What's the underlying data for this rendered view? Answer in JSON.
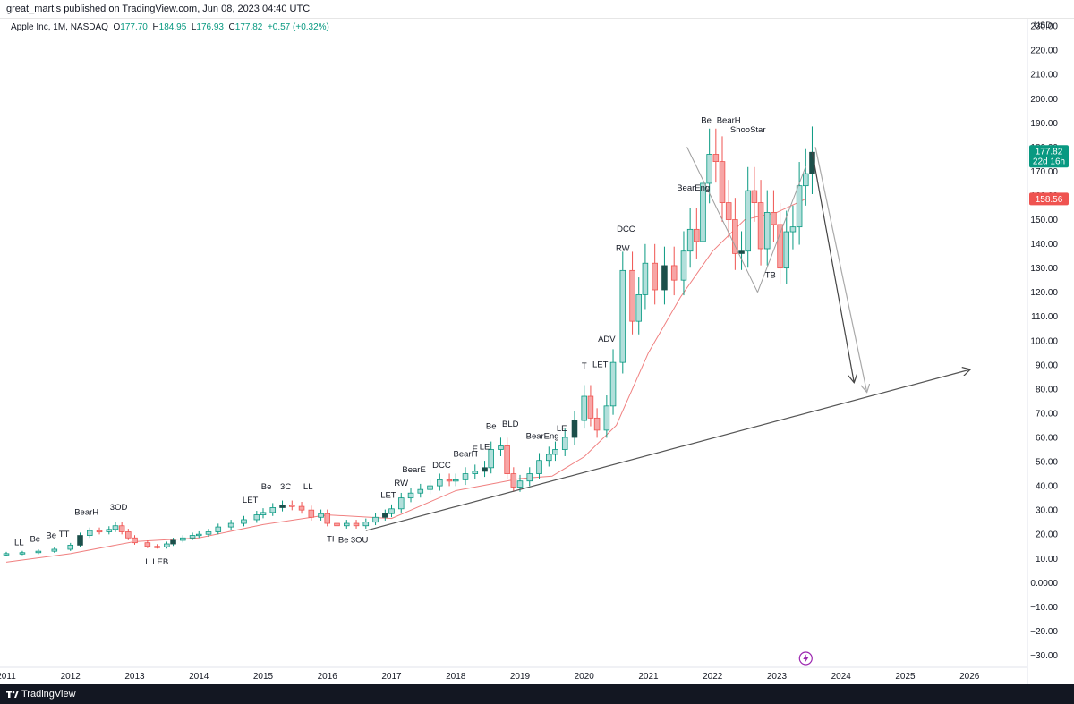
{
  "header": {
    "published_by": "great_martis published on TradingView.com, Jun 08, 2023 04:40 UTC"
  },
  "legend": {
    "symbol": "Apple Inc, 1M, NASDAQ",
    "o_label": "O",
    "o_value": "177.70",
    "h_label": "H",
    "h_value": "184.95",
    "l_label": "L",
    "l_value": "176.93",
    "c_label": "C",
    "c_value": "177.82",
    "change": "+0.57 (+0.32%)"
  },
  "footer": {
    "brand": "TradingView"
  },
  "colors": {
    "bull": "#089981",
    "bull_fill": "#b2dfdb",
    "bear": "#ef5350",
    "bear_fill": "#f7a5a5",
    "dark_bull": "#1c4f4a",
    "dark_bear": "#1a237e",
    "ma": "#f08080",
    "price_badge": "#089981",
    "ma_badge": "#ef5350",
    "trend": "#555555"
  },
  "chart_data": {
    "type": "candlestick",
    "title": "Apple Inc, 1M, NASDAQ",
    "currency": "USD",
    "ylim": [
      -35,
      233
    ],
    "y_ticks": [
      230,
      220,
      210,
      200,
      190,
      180,
      170,
      160,
      150,
      140,
      130,
      120,
      110,
      100,
      90,
      80,
      70,
      60,
      50,
      40,
      30,
      20,
      10,
      0,
      -10,
      -20,
      -30
    ],
    "y_tick_labels": [
      "230.00",
      "220.00",
      "210.00",
      "200.00",
      "190.00",
      "180.00",
      "170.00",
      "160.00",
      "150.00",
      "140.00",
      "130.00",
      "120.00",
      "110.00",
      "100.00",
      "90.00",
      "80.00",
      "70.00",
      "60.00",
      "50.00",
      "40.00",
      "30.00",
      "20.00",
      "10.00",
      "0.0000",
      "−10.00",
      "−20.00",
      "−30.00"
    ],
    "x_range": [
      2011.0,
      2027.0
    ],
    "x_ticks": [
      2011,
      2012,
      2013,
      2014,
      2015,
      2016,
      2017,
      2018,
      2019,
      2020,
      2021,
      2022,
      2023,
      2024,
      2025,
      2026
    ],
    "x_tick_labels": [
      "2011",
      "2012",
      "2013",
      "2014",
      "2015",
      "2016",
      "2017",
      "2018",
      "2019",
      "2020",
      "2021",
      "2022",
      "2023",
      "2024",
      "2025",
      "2026"
    ],
    "price_close": 177.82,
    "price_label": "177.82",
    "price_countdown": "22d 16h",
    "ma_value": 158.56,
    "ma_label": "158.56",
    "monthly_closes": [
      [
        2011.0,
        12.0
      ],
      [
        2011.25,
        12.4
      ],
      [
        2011.5,
        13.0
      ],
      [
        2011.75,
        13.8
      ],
      [
        2012.0,
        15.5
      ],
      [
        2012.15,
        19.5
      ],
      [
        2012.3,
        21.5
      ],
      [
        2012.45,
        21.0
      ],
      [
        2012.6,
        22.0
      ],
      [
        2012.7,
        23.5
      ],
      [
        2012.8,
        21.0
      ],
      [
        2012.9,
        18.5
      ],
      [
        2013.0,
        16.5
      ],
      [
        2013.2,
        15.0
      ],
      [
        2013.35,
        14.8
      ],
      [
        2013.5,
        16.0
      ],
      [
        2013.6,
        17.5
      ],
      [
        2013.75,
        18.5
      ],
      [
        2013.9,
        19.5
      ],
      [
        2014.0,
        20.0
      ],
      [
        2014.15,
        21.0
      ],
      [
        2014.3,
        23.0
      ],
      [
        2014.5,
        24.5
      ],
      [
        2014.7,
        26.0
      ],
      [
        2014.9,
        28.0
      ],
      [
        2015.0,
        29.0
      ],
      [
        2015.15,
        31.0
      ],
      [
        2015.3,
        32.0
      ],
      [
        2015.45,
        31.5
      ],
      [
        2015.6,
        30.0
      ],
      [
        2015.75,
        27.0
      ],
      [
        2015.9,
        28.5
      ],
      [
        2016.0,
        24.5
      ],
      [
        2016.15,
        23.5
      ],
      [
        2016.3,
        24.5
      ],
      [
        2016.45,
        23.5
      ],
      [
        2016.6,
        25.0
      ],
      [
        2016.75,
        27.0
      ],
      [
        2016.9,
        28.5
      ],
      [
        2017.0,
        30.5
      ],
      [
        2017.15,
        35.0
      ],
      [
        2017.3,
        37.0
      ],
      [
        2017.45,
        38.5
      ],
      [
        2017.6,
        40.0
      ],
      [
        2017.75,
        42.5
      ],
      [
        2017.9,
        42.0
      ],
      [
        2018.0,
        42.5
      ],
      [
        2018.15,
        45.0
      ],
      [
        2018.3,
        46.0
      ],
      [
        2018.45,
        47.5
      ],
      [
        2018.55,
        55.0
      ],
      [
        2018.7,
        56.5
      ],
      [
        2018.8,
        45.0
      ],
      [
        2018.9,
        39.5
      ],
      [
        2019.0,
        42.0
      ],
      [
        2019.15,
        45.0
      ],
      [
        2019.3,
        50.5
      ],
      [
        2019.45,
        53.0
      ],
      [
        2019.55,
        55.0
      ],
      [
        2019.7,
        60.0
      ],
      [
        2019.85,
        67.0
      ],
      [
        2020.0,
        77.0
      ],
      [
        2020.1,
        68.0
      ],
      [
        2020.2,
        63.0
      ],
      [
        2020.35,
        73.0
      ],
      [
        2020.45,
        91.0
      ],
      [
        2020.6,
        129.0
      ],
      [
        2020.75,
        108.0
      ],
      [
        2020.85,
        119.0
      ],
      [
        2020.95,
        132.0
      ],
      [
        2021.1,
        121.0
      ],
      [
        2021.25,
        131.0
      ],
      [
        2021.4,
        125.0
      ],
      [
        2021.55,
        137.0
      ],
      [
        2021.65,
        146.0
      ],
      [
        2021.75,
        141.0
      ],
      [
        2021.85,
        165.0
      ],
      [
        2021.95,
        177.0
      ],
      [
        2022.05,
        174.0
      ],
      [
        2022.15,
        157.0
      ],
      [
        2022.25,
        150.0
      ],
      [
        2022.35,
        136.0
      ],
      [
        2022.45,
        137.0
      ],
      [
        2022.55,
        162.0
      ],
      [
        2022.65,
        157.0
      ],
      [
        2022.75,
        138.0
      ],
      [
        2022.85,
        153.0
      ],
      [
        2022.95,
        148.0
      ],
      [
        2023.05,
        130.0
      ],
      [
        2023.15,
        145.0
      ],
      [
        2023.25,
        147.0
      ],
      [
        2023.35,
        164.0
      ],
      [
        2023.45,
        169.0
      ],
      [
        2023.55,
        177.82
      ]
    ],
    "moving_average": [
      [
        2011.0,
        8.5
      ],
      [
        2012.0,
        12.0
      ],
      [
        2013.0,
        17.0
      ],
      [
        2014.0,
        18.5
      ],
      [
        2015.0,
        24.0
      ],
      [
        2016.0,
        28.0
      ],
      [
        2017.0,
        26.5
      ],
      [
        2018.0,
        38.0
      ],
      [
        2019.0,
        43.0
      ],
      [
        2019.5,
        44.0
      ],
      [
        2020.0,
        52.0
      ],
      [
        2020.5,
        65.0
      ],
      [
        2021.0,
        95.0
      ],
      [
        2021.5,
        118.0
      ],
      [
        2022.0,
        137.0
      ],
      [
        2022.5,
        150.0
      ],
      [
        2023.0,
        153.0
      ],
      [
        2023.45,
        158.56
      ]
    ],
    "trendline": {
      "from": [
        2016.6,
        21.5
      ],
      "to": [
        2026.0,
        88.0
      ]
    },
    "projection_dark": [
      [
        2023.55,
        178.0
      ],
      [
        2024.2,
        83.0
      ]
    ],
    "projection_light": [
      [
        2023.6,
        180.0
      ],
      [
        2024.4,
        79.0
      ]
    ],
    "wedge_lines": [
      [
        [
          2021.6,
          180.0
        ],
        [
          2022.7,
          120.0
        ]
      ],
      [
        [
          2022.7,
          120.0
        ],
        [
          2023.45,
          172.0
        ]
      ]
    ],
    "annotations": [
      {
        "text": "LL",
        "x": 2011.2,
        "y": 15.5
      },
      {
        "text": "Be",
        "x": 2011.45,
        "y": 17.0
      },
      {
        "text": "Be",
        "x": 2011.7,
        "y": 18.5
      },
      {
        "text": "TT",
        "x": 2011.9,
        "y": 19.0
      },
      {
        "text": "BearH",
        "x": 2012.25,
        "y": 28.0
      },
      {
        "text": "3OD",
        "x": 2012.75,
        "y": 30.0
      },
      {
        "text": "L",
        "x": 2013.2,
        "y": 7.5
      },
      {
        "text": "LEB",
        "x": 2013.4,
        "y": 7.5
      },
      {
        "text": "LET",
        "x": 2014.8,
        "y": 33.0
      },
      {
        "text": "Be",
        "x": 2015.05,
        "y": 38.5
      },
      {
        "text": "3C",
        "x": 2015.35,
        "y": 38.5
      },
      {
        "text": "LL",
        "x": 2015.7,
        "y": 38.5
      },
      {
        "text": "TI",
        "x": 2016.05,
        "y": 17.0
      },
      {
        "text": "Be",
        "x": 2016.25,
        "y": 16.5
      },
      {
        "text": "3OU",
        "x": 2016.5,
        "y": 16.5
      },
      {
        "text": "LET",
        "x": 2016.95,
        "y": 35.0
      },
      {
        "text": "RW",
        "x": 2017.15,
        "y": 40.0
      },
      {
        "text": "BearE",
        "x": 2017.35,
        "y": 45.5
      },
      {
        "text": "DCC",
        "x": 2017.78,
        "y": 47.5
      },
      {
        "text": "BearH",
        "x": 2018.15,
        "y": 52.0
      },
      {
        "text": "E",
        "x": 2018.3,
        "y": 54.0
      },
      {
        "text": "LE",
        "x": 2018.45,
        "y": 55.0
      },
      {
        "text": "Be",
        "x": 2018.55,
        "y": 63.5
      },
      {
        "text": "BLD",
        "x": 2018.85,
        "y": 64.5
      },
      {
        "text": "BearEng",
        "x": 2019.35,
        "y": 59.5
      },
      {
        "text": "LE",
        "x": 2019.65,
        "y": 62.5
      },
      {
        "text": "T",
        "x": 2020.0,
        "y": 88.5
      },
      {
        "text": "LET",
        "x": 2020.25,
        "y": 89.0
      },
      {
        "text": "ADV",
        "x": 2020.35,
        "y": 99.5
      },
      {
        "text": "RW",
        "x": 2020.6,
        "y": 137.0
      },
      {
        "text": "DCC",
        "x": 2020.65,
        "y": 145.0
      },
      {
        "text": "BearEng",
        "x": 2021.7,
        "y": 162.0
      },
      {
        "text": "Be",
        "x": 2021.9,
        "y": 190.0
      },
      {
        "text": "BearH",
        "x": 2022.25,
        "y": 190.0
      },
      {
        "text": "ShooStar",
        "x": 2022.55,
        "y": 186.0
      },
      {
        "text": "TB",
        "x": 2022.9,
        "y": 126.0
      }
    ]
  }
}
